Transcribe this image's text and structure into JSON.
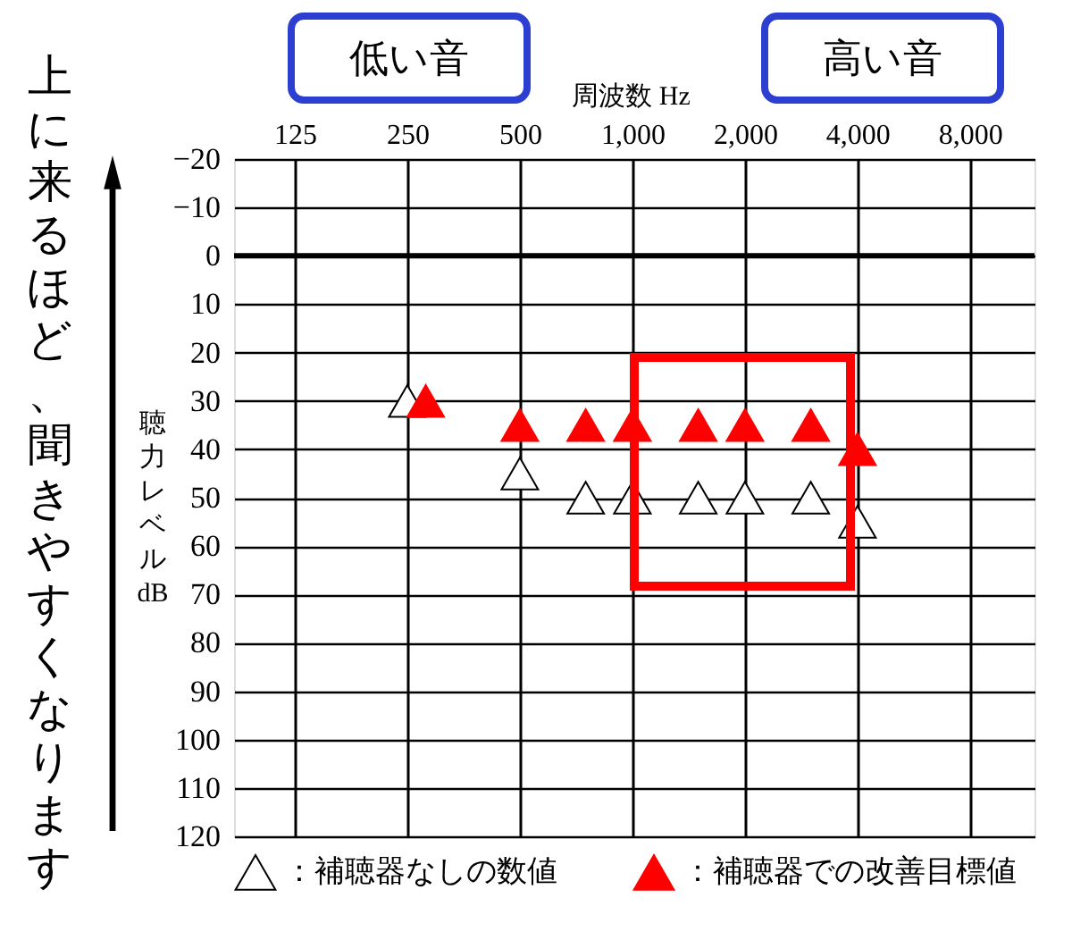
{
  "chart_data": {
    "type": "scatter",
    "xlabel": "周波数 Hz",
    "ylabel": "聴力レベル dB",
    "annotations": [
      "低い音",
      "高い音",
      "上に来るほど、聞きやすくなります"
    ],
    "series": [
      {
        "name": "：補聴器なしの数値",
        "color": "#ffffff",
        "x": [
          250,
          500,
          750,
          1000,
          1500,
          2000,
          3000,
          4000
        ],
        "values": [
          30,
          45,
          50,
          50,
          50,
          50,
          50,
          55
        ]
      },
      {
        "name": "：補聴器での改善目標値",
        "color": "#ff0000",
        "x": [
          280,
          500,
          750,
          1000,
          1500,
          2000,
          3000,
          4000
        ],
        "values": [
          30,
          35,
          35,
          35,
          35,
          35,
          35,
          40
        ]
      }
    ],
    "log": "x",
    "xlim": [
      86,
      11900
    ],
    "xticks": [
      125,
      250,
      500,
      {
        "value": 1000,
        "label": "1,000"
      },
      {
        "value": 2000,
        "label": "2,000"
      },
      {
        "value": 4000,
        "label": "4,000"
      },
      {
        "value": 8000,
        "label": "8,000"
      }
    ],
    "ylim": [
      120,
      -20
    ],
    "yticks": [
      -20,
      -10,
      0,
      10,
      20,
      30,
      40,
      50,
      60,
      70,
      80,
      90,
      100,
      110,
      120
    ],
    "ref_lines": [
      {
        "axis": "y",
        "value": 0,
        "color": "#000000"
      }
    ],
    "grid": true,
    "legend": "bottom",
    "marker": "triangle"
  }
}
